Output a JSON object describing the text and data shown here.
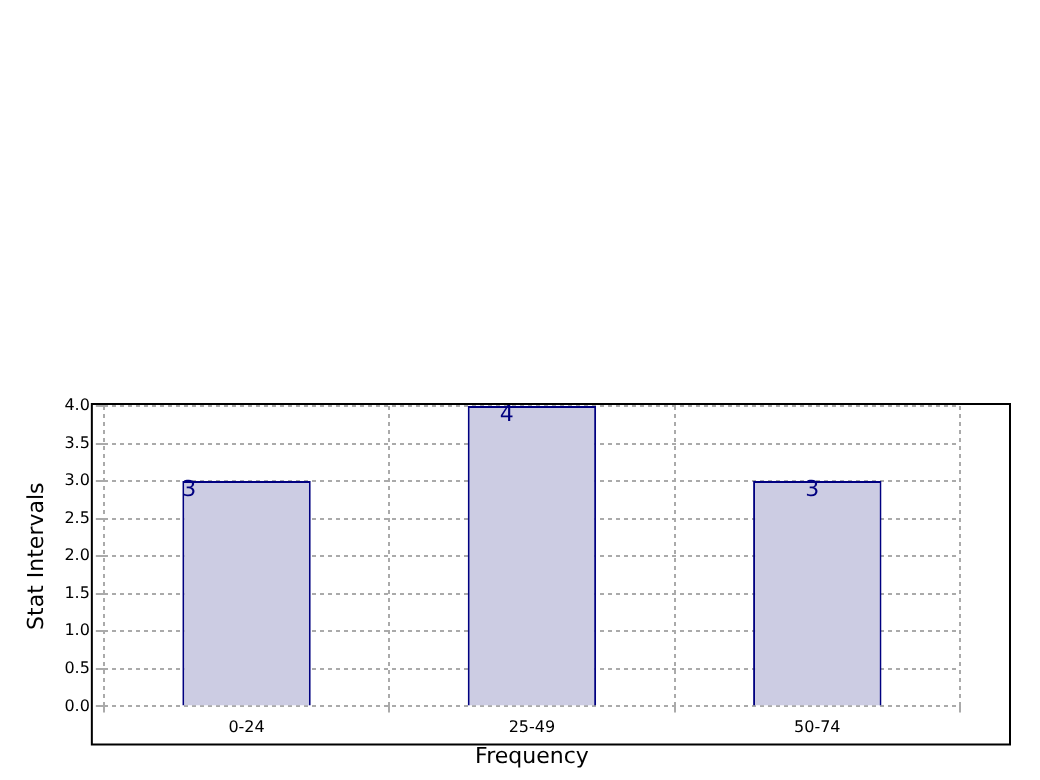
{
  "chart_data": {
    "type": "bar",
    "xlabel": "Frequency",
    "ylabel": "Stat Intervals",
    "categories": [
      "0-24",
      "25-49",
      "50-74"
    ],
    "values": [
      3,
      4,
      3
    ],
    "color": "#ccccE3",
    "ylim": [
      0,
      4.0
    ],
    "yticks": [
      {
        "value": 0,
        "label": "0.0"
      },
      {
        "value": 0.5,
        "label": "0.5"
      },
      {
        "value": 1,
        "label": "1.0"
      },
      {
        "value": 1.5,
        "label": "1.5"
      },
      {
        "value": 2,
        "label": "2.0"
      },
      {
        "value": 2.5,
        "label": "2.5"
      },
      {
        "value": 3,
        "label": "3.0"
      },
      {
        "value": 3.5,
        "label": "3.5"
      },
      {
        "value": 4,
        "label": "4.0"
      }
    ],
    "grid": true,
    "data_labels": true
  }
}
